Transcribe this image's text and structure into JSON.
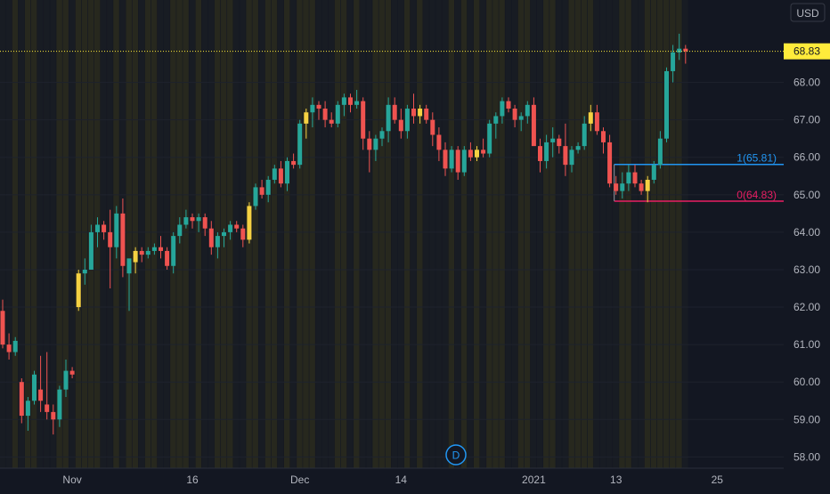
{
  "currency": "USD",
  "interval": "D",
  "last_price_label": "68.83",
  "colors": {
    "background": "#131722",
    "up": "#26a69a",
    "down": "#ef5350",
    "up_session": "#f5d142",
    "fib_1": "#2196f3",
    "fib_0": "#e91e63",
    "last_price_bg": "#ffeb3b"
  },
  "chart_data": {
    "type": "candlestick",
    "y_ticks": [
      "58.00",
      "59.00",
      "60.00",
      "61.00",
      "62.00",
      "63.00",
      "64.00",
      "65.00",
      "66.00",
      "67.00",
      "68.00"
    ],
    "y_tick_values": [
      58,
      59,
      60,
      61,
      62,
      63,
      64,
      65,
      66,
      67,
      68
    ],
    "ylim": [
      57.7,
      70.2
    ],
    "x_ticks": [
      {
        "label": "Nov",
        "date": "2020-11-02"
      },
      {
        "label": "16",
        "date": "2020-11-16"
      },
      {
        "label": "Dec",
        "date": "2020-12-01"
      },
      {
        "label": "14",
        "date": "2020-12-14"
      },
      {
        "label": "2021",
        "date": "2021-01-04"
      },
      {
        "label": "13",
        "date": "2021-01-13"
      },
      {
        "label": "25",
        "date": "2021-01-25"
      }
    ],
    "fib_levels": [
      {
        "label": "1(65.81)",
        "value": 65.81
      },
      {
        "label": "0(64.83)",
        "value": 64.83
      }
    ],
    "last_price": 68.83,
    "candles": [
      [
        61.9,
        62.2,
        60.9,
        61.0
      ],
      [
        61.0,
        61.3,
        60.6,
        60.8
      ],
      [
        60.8,
        61.2,
        60.7,
        61.1
      ],
      [
        60.0,
        60.1,
        58.9,
        59.1
      ],
      [
        59.1,
        59.6,
        58.7,
        59.5
      ],
      [
        59.5,
        60.3,
        59.4,
        60.2
      ],
      [
        59.8,
        60.7,
        59.2,
        59.5
      ],
      [
        59.4,
        60.8,
        59.0,
        59.2
      ],
      [
        59.2,
        59.4,
        58.6,
        59.0
      ],
      [
        59.0,
        59.9,
        58.8,
        59.8
      ],
      [
        59.8,
        60.6,
        59.6,
        60.3
      ],
      [
        60.3,
        60.4,
        60.1,
        60.2
      ],
      [
        62.0,
        63.0,
        61.9,
        62.9
      ],
      [
        62.9,
        63.3,
        62.6,
        63.0
      ],
      [
        63.0,
        64.2,
        63.0,
        64.0
      ],
      [
        64.0,
        64.4,
        63.6,
        64.2
      ],
      [
        64.2,
        64.3,
        63.8,
        64.0
      ],
      [
        64.0,
        64.6,
        62.5,
        63.6
      ],
      [
        63.6,
        64.7,
        63.3,
        64.5
      ],
      [
        64.5,
        64.9,
        62.8,
        63.1
      ],
      [
        62.9,
        63.2,
        61.9,
        63.3
      ],
      [
        63.2,
        63.6,
        62.9,
        63.5
      ],
      [
        63.5,
        63.6,
        63.2,
        63.4
      ],
      [
        63.4,
        63.6,
        63.3,
        63.5
      ],
      [
        63.5,
        63.7,
        63.4,
        63.6
      ],
      [
        63.6,
        63.9,
        63.3,
        63.5
      ],
      [
        63.5,
        63.6,
        63.0,
        63.1
      ],
      [
        63.1,
        64.0,
        62.9,
        63.9
      ],
      [
        63.9,
        64.4,
        63.7,
        64.2
      ],
      [
        64.2,
        64.6,
        64.1,
        64.4
      ],
      [
        64.4,
        64.5,
        64.1,
        64.3
      ],
      [
        64.3,
        64.5,
        64.0,
        64.4
      ],
      [
        64.4,
        64.5,
        63.9,
        64.1
      ],
      [
        64.1,
        64.3,
        63.4,
        63.6
      ],
      [
        63.6,
        64.0,
        63.3,
        63.9
      ],
      [
        63.9,
        64.1,
        63.6,
        64.0
      ],
      [
        64.0,
        64.3,
        63.8,
        64.2
      ],
      [
        64.2,
        64.3,
        64.0,
        64.1
      ],
      [
        64.1,
        64.2,
        63.6,
        63.8
      ],
      [
        63.8,
        64.8,
        63.7,
        64.7
      ],
      [
        64.7,
        65.3,
        64.6,
        65.2
      ],
      [
        65.2,
        65.4,
        64.9,
        65.0
      ],
      [
        65.0,
        65.5,
        64.8,
        65.4
      ],
      [
        65.4,
        65.8,
        65.3,
        65.7
      ],
      [
        65.7,
        65.9,
        65.2,
        65.3
      ],
      [
        65.3,
        66.0,
        65.1,
        65.9
      ],
      [
        65.9,
        66.1,
        65.7,
        65.8
      ],
      [
        65.8,
        67.0,
        65.7,
        66.9
      ],
      [
        66.9,
        67.3,
        66.5,
        67.2
      ],
      [
        67.2,
        67.6,
        66.8,
        67.4
      ],
      [
        67.4,
        67.5,
        67.0,
        67.3
      ],
      [
        67.3,
        67.5,
        66.8,
        67.0
      ],
      [
        67.0,
        67.2,
        66.8,
        66.9
      ],
      [
        66.9,
        67.5,
        66.8,
        67.4
      ],
      [
        67.4,
        67.7,
        67.1,
        67.6
      ],
      [
        67.6,
        67.7,
        67.2,
        67.4
      ],
      [
        67.4,
        67.8,
        67.3,
        67.5
      ],
      [
        67.5,
        67.6,
        66.2,
        66.5
      ],
      [
        66.5,
        66.7,
        65.6,
        66.2
      ],
      [
        66.2,
        66.6,
        65.9,
        66.5
      ],
      [
        66.5,
        66.8,
        66.3,
        66.7
      ],
      [
        66.7,
        67.6,
        66.4,
        67.4
      ],
      [
        67.4,
        67.6,
        66.9,
        67.0
      ],
      [
        67.0,
        67.3,
        66.5,
        66.7
      ],
      [
        66.7,
        67.4,
        66.5,
        67.3
      ],
      [
        67.3,
        67.7,
        66.9,
        67.1
      ],
      [
        67.1,
        67.4,
        66.9,
        67.3
      ],
      [
        67.3,
        67.4,
        66.9,
        67.0
      ],
      [
        67.0,
        67.2,
        66.3,
        66.6
      ],
      [
        66.6,
        66.8,
        65.9,
        66.2
      ],
      [
        66.2,
        66.4,
        65.5,
        65.7
      ],
      [
        65.7,
        66.3,
        65.6,
        66.2
      ],
      [
        66.2,
        66.3,
        65.4,
        65.6
      ],
      [
        65.6,
        66.3,
        65.5,
        66.2
      ],
      [
        66.2,
        66.4,
        65.9,
        66.0
      ],
      [
        66.0,
        66.3,
        65.9,
        66.2
      ],
      [
        66.2,
        66.5,
        66.0,
        66.1
      ],
      [
        66.1,
        67.0,
        66.0,
        66.9
      ],
      [
        66.9,
        67.2,
        66.5,
        67.1
      ],
      [
        67.1,
        67.6,
        66.9,
        67.5
      ],
      [
        67.5,
        67.6,
        67.2,
        67.3
      ],
      [
        67.3,
        67.4,
        66.8,
        67.0
      ],
      [
        67.0,
        67.2,
        66.7,
        67.1
      ],
      [
        67.1,
        67.5,
        66.9,
        67.4
      ],
      [
        67.4,
        67.6,
        66.4,
        66.3
      ],
      [
        66.3,
        66.5,
        65.6,
        65.9
      ],
      [
        65.9,
        66.6,
        65.7,
        66.4
      ],
      [
        66.4,
        66.8,
        66.0,
        66.5
      ],
      [
        66.5,
        66.6,
        66.1,
        66.3
      ],
      [
        66.3,
        66.9,
        65.5,
        65.8
      ],
      [
        65.8,
        66.3,
        65.6,
        66.2
      ],
      [
        66.2,
        66.4,
        66.1,
        66.3
      ],
      [
        66.3,
        67.1,
        66.2,
        66.9
      ],
      [
        66.9,
        67.4,
        66.7,
        67.2
      ],
      [
        67.2,
        67.4,
        66.6,
        66.7
      ],
      [
        66.7,
        66.8,
        66.1,
        66.4
      ],
      [
        66.4,
        66.6,
        65.2,
        65.3
      ],
      [
        65.3,
        65.5,
        65.0,
        65.1
      ],
      [
        65.1,
        65.6,
        64.9,
        65.3
      ],
      [
        65.3,
        65.8,
        65.1,
        65.6
      ],
      [
        65.6,
        65.8,
        65.2,
        65.3
      ],
      [
        65.3,
        65.4,
        65.0,
        65.1
      ],
      [
        65.1,
        65.5,
        64.8,
        65.4
      ],
      [
        65.4,
        65.9,
        65.3,
        65.8
      ],
      [
        65.8,
        66.7,
        65.7,
        66.5
      ],
      [
        66.5,
        68.4,
        66.4,
        68.3
      ],
      [
        68.3,
        69.0,
        68.0,
        68.8
      ],
      [
        68.8,
        69.3,
        68.6,
        68.9
      ],
      [
        68.9,
        69.0,
        68.5,
        68.83
      ]
    ]
  }
}
